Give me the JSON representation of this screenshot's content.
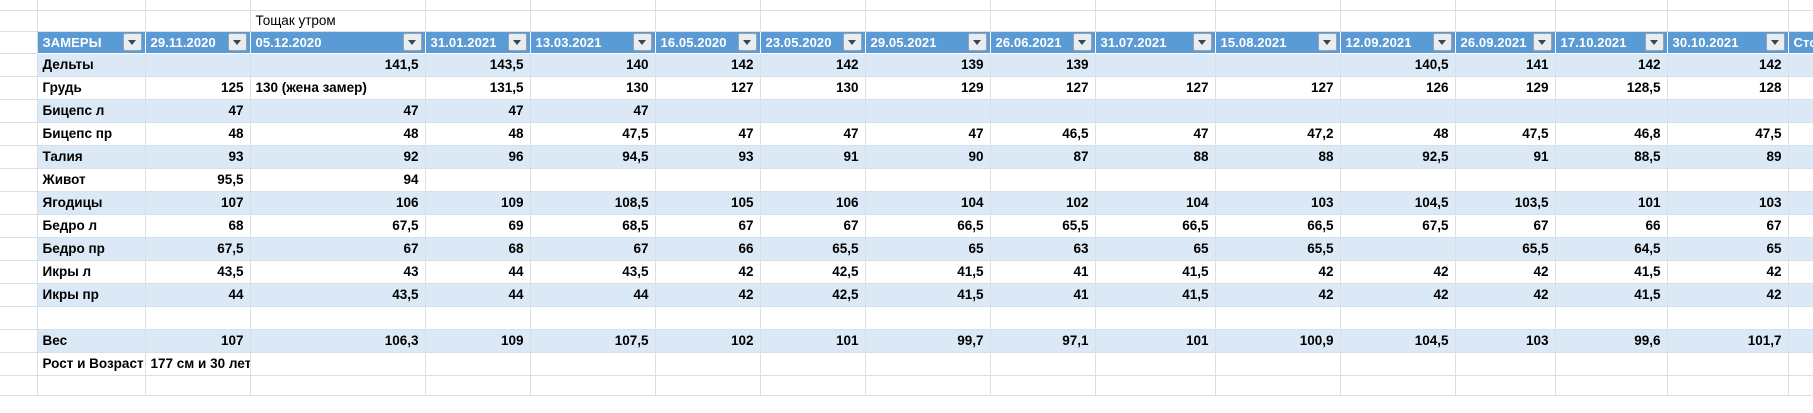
{
  "sheet": {
    "note_above_table": "Тощак утром",
    "columns": [
      "ЗАМЕРЫ",
      "29.11.2020",
      "05.12.2020",
      "31.01.2021",
      "13.03.2021",
      "16.05.2020",
      "23.05.2020",
      "29.05.2021",
      "26.06.2021",
      "31.07.2021",
      "15.08.2021",
      "12.09.2021",
      "26.09.2021",
      "17.10.2021",
      "30.10.2021",
      "Сто"
    ],
    "rows": [
      {
        "label": "Дельты",
        "values": [
          "",
          "141,5",
          "143,5",
          "140",
          "142",
          "142",
          "139",
          "139",
          "",
          "",
          "140,5",
          "141",
          "142",
          "142"
        ]
      },
      {
        "label": "Грудь",
        "values": [
          "125",
          "130 (жена замер)",
          "131,5",
          "130",
          "127",
          "130",
          "129",
          "127",
          "127",
          "127",
          "126",
          "129",
          "128,5",
          "128"
        ]
      },
      {
        "label": "Бицепс л",
        "values": [
          "47",
          "47",
          "47",
          "47",
          "",
          "",
          "",
          "",
          "",
          "",
          "",
          "",
          "",
          ""
        ]
      },
      {
        "label": "Бицепс пр",
        "values": [
          "48",
          "48",
          "48",
          "47,5",
          "47",
          "47",
          "47",
          "46,5",
          "47",
          "47,2",
          "48",
          "47,5",
          "46,8",
          "47,5"
        ]
      },
      {
        "label": "Талия",
        "values": [
          "93",
          "92",
          "96",
          "94,5",
          "93",
          "91",
          "90",
          "87",
          "88",
          "88",
          "92,5",
          "91",
          "88,5",
          "89"
        ]
      },
      {
        "label": "Живот",
        "values": [
          "95,5",
          "94",
          "",
          "",
          "",
          "",
          "",
          "",
          "",
          "",
          "",
          "",
          "",
          ""
        ]
      },
      {
        "label": "Ягодицы",
        "values": [
          "107",
          "106",
          "109",
          "108,5",
          "105",
          "106",
          "104",
          "102",
          "104",
          "103",
          "104,5",
          "103,5",
          "101",
          "103"
        ]
      },
      {
        "label": "Бедро л",
        "values": [
          "68",
          "67,5",
          "69",
          "68,5",
          "67",
          "67",
          "66,5",
          "65,5",
          "66,5",
          "66,5",
          "67,5",
          "67",
          "66",
          "67"
        ]
      },
      {
        "label": "Бедро пр",
        "values": [
          "67,5",
          "67",
          "68",
          "67",
          "66",
          "65,5",
          "65",
          "63",
          "65",
          "65,5",
          "",
          "65,5",
          "64,5",
          "65"
        ]
      },
      {
        "label": "Икры л",
        "values": [
          "43,5",
          "43",
          "44",
          "43,5",
          "42",
          "42,5",
          "41,5",
          "41",
          "41,5",
          "42",
          "42",
          "42",
          "41,5",
          "42"
        ]
      },
      {
        "label": "Икры пр",
        "values": [
          "44",
          "43,5",
          "44",
          "44",
          "42",
          "42,5",
          "41,5",
          "41",
          "41,5",
          "42",
          "42",
          "42",
          "41,5",
          "42"
        ]
      },
      {
        "label": "",
        "values": [
          "",
          "",
          "",
          "",
          "",
          "",
          "",
          "",
          "",
          "",
          "",
          "",
          "",
          ""
        ]
      },
      {
        "label": "Вес",
        "values": [
          "107",
          "106,3",
          "109",
          "107,5",
          "102",
          "101",
          "99,7",
          "97,1",
          "101",
          "100,9",
          "104,5",
          "103",
          "99,6",
          "101,7"
        ]
      },
      {
        "label": "Рост и Возраст",
        "values": [
          "177 см и 30 лет",
          "",
          "",
          "",
          "",
          "",
          "",
          "",
          "",
          "",
          "",
          "",
          "",
          ""
        ]
      }
    ],
    "icons": {
      "header_filter": "chevron-down"
    },
    "colors": {
      "header_bg": "#5B9BD5",
      "header_text": "#FFFFFF",
      "banded_row_bg": "#DBE9F6",
      "gridline": "#D9DFE8",
      "cell_text": "#000000"
    }
  }
}
